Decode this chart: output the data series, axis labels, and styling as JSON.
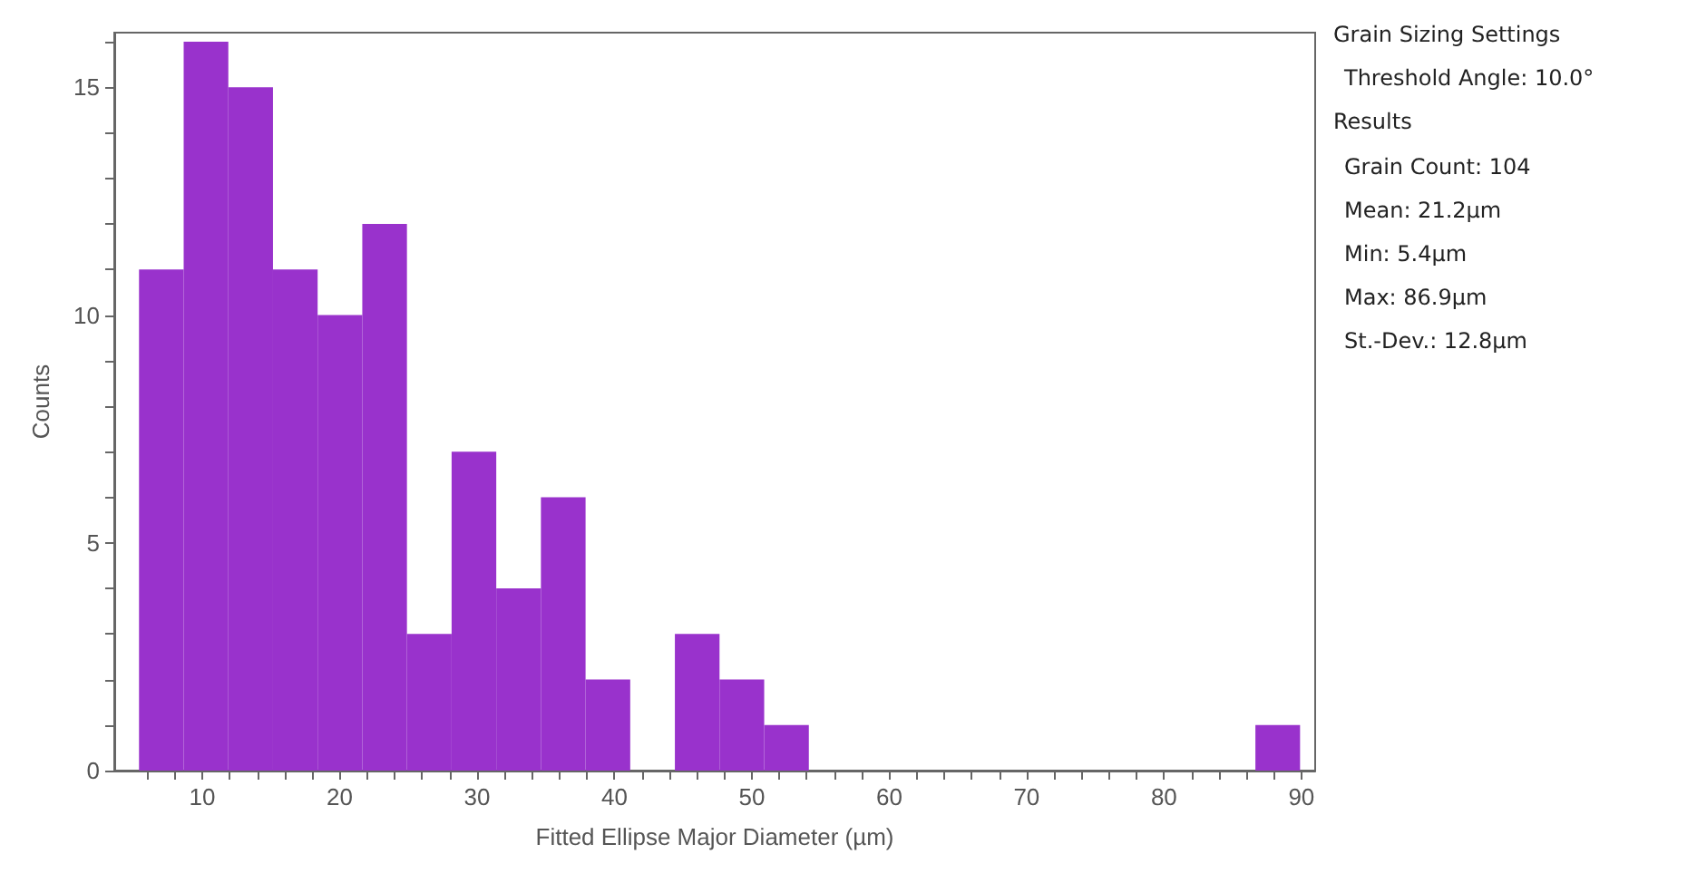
{
  "chart_data": {
    "type": "histogram",
    "xlabel": "Fitted Ellipse Major Diameter (µm)",
    "ylabel": "Counts",
    "color": "#9932cc",
    "bins": [
      5.4,
      8.65,
      11.9,
      15.15,
      18.4,
      21.65,
      24.9,
      28.15,
      31.4,
      34.65,
      37.9,
      41.15,
      44.4,
      47.65,
      50.9,
      54.15,
      57.4,
      60.65,
      63.9,
      67.15,
      70.4,
      73.65,
      76.9,
      80.15,
      83.4,
      86.65,
      89.9
    ],
    "values": [
      11,
      16,
      15,
      11,
      10,
      12,
      3,
      7,
      4,
      6,
      2,
      0,
      3,
      2,
      1,
      0,
      0,
      0,
      0,
      0,
      0,
      0,
      0,
      0,
      0,
      1
    ],
    "xlim": [
      3.6,
      91
    ],
    "xticks": [
      {
        "value": 6,
        "label": null
      },
      {
        "value": 8,
        "label": null
      },
      10,
      {
        "value": 12,
        "label": null
      },
      {
        "value": 14,
        "label": null
      },
      {
        "value": 16,
        "label": null
      },
      {
        "value": 18,
        "label": null
      },
      20,
      {
        "value": 22,
        "label": null
      },
      {
        "value": 24,
        "label": null
      },
      {
        "value": 26,
        "label": null
      },
      {
        "value": 28,
        "label": null
      },
      30,
      {
        "value": 32,
        "label": null
      },
      {
        "value": 34,
        "label": null
      },
      {
        "value": 36,
        "label": null
      },
      {
        "value": 38,
        "label": null
      },
      40,
      {
        "value": 42,
        "label": null
      },
      {
        "value": 44,
        "label": null
      },
      {
        "value": 46,
        "label": null
      },
      {
        "value": 48,
        "label": null
      },
      50,
      {
        "value": 52,
        "label": null
      },
      {
        "value": 54,
        "label": null
      },
      {
        "value": 56,
        "label": null
      },
      {
        "value": 58,
        "label": null
      },
      60,
      {
        "value": 62,
        "label": null
      },
      {
        "value": 64,
        "label": null
      },
      {
        "value": 66,
        "label": null
      },
      {
        "value": 68,
        "label": null
      },
      70,
      {
        "value": 72,
        "label": null
      },
      {
        "value": 74,
        "label": null
      },
      {
        "value": 76,
        "label": null
      },
      {
        "value": 78,
        "label": null
      },
      80,
      {
        "value": 82,
        "label": null
      },
      {
        "value": 84,
        "label": null
      },
      {
        "value": 86,
        "label": null
      },
      {
        "value": 88,
        "label": null
      },
      90
    ],
    "ylim": [
      0,
      16.2
    ],
    "yticks": [
      0,
      {
        "value": 1,
        "label": null
      },
      {
        "value": 2,
        "label": null
      },
      {
        "value": 3,
        "label": null
      },
      {
        "value": 4,
        "label": null
      },
      5,
      {
        "value": 6,
        "label": null
      },
      {
        "value": 7,
        "label": null
      },
      {
        "value": 8,
        "label": null
      },
      {
        "value": 9,
        "label": null
      },
      10,
      {
        "value": 11,
        "label": null
      },
      {
        "value": 12,
        "label": null
      },
      {
        "value": 13,
        "label": null
      },
      {
        "value": 14,
        "label": null
      },
      15,
      {
        "value": 16,
        "label": null
      }
    ],
    "grid": false,
    "annotations": [
      "Grain Sizing Settings",
      "Threshold Angle: 10.0°",
      "Results",
      "Grain Count: 104",
      "Mean: 21.2µm",
      "Min: 5.4µm",
      "Max: 86.9µm",
      "St.-Dev.: 12.8µm"
    ]
  }
}
